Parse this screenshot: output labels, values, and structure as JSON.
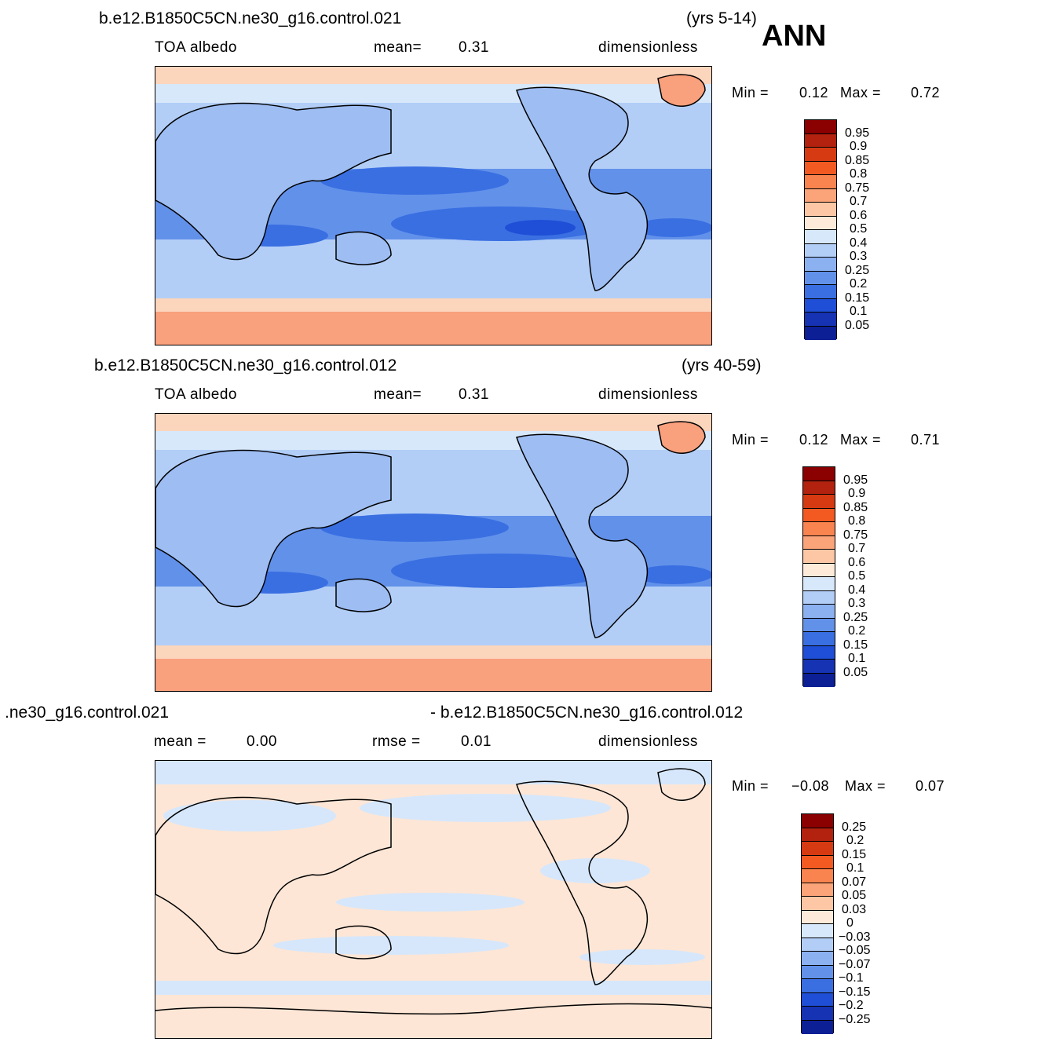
{
  "season": "ANN",
  "panels": [
    {
      "case": "b.e12.B1850C5CN.ne30_g16.control.021",
      "years": "(yrs 5-14)",
      "variable": "TOA  albedo",
      "stat1_label": "mean=",
      "stat1_value": "0.31",
      "stat2_label": "",
      "stat2_value": "",
      "units": "dimensionless",
      "min_label": "Min  =",
      "min_value": "0.12",
      "max_label": "Max  =",
      "max_value": "0.72",
      "ticks": [
        "0.95",
        "0.9",
        "0.85",
        "0.8",
        "0.75",
        "0.7",
        "0.6",
        "0.5",
        "0.4",
        "0.3",
        "0.25",
        "0.2",
        "0.15",
        "0.1",
        "0.05"
      ]
    },
    {
      "case": "b.e12.B1850C5CN.ne30_g16.control.012",
      "years": "(yrs 40-59)",
      "variable": "TOA  albedo",
      "stat1_label": "mean=",
      "stat1_value": "0.31",
      "stat2_label": "",
      "stat2_value": "",
      "units": "dimensionless",
      "min_label": "Min  =",
      "min_value": "0.12",
      "max_label": "Max  =",
      "max_value": "0.71",
      "ticks": [
        "0.95",
        "0.9",
        "0.85",
        "0.8",
        "0.75",
        "0.7",
        "0.6",
        "0.5",
        "0.4",
        "0.3",
        "0.25",
        "0.2",
        "0.15",
        "0.1",
        "0.05"
      ]
    },
    {
      "case_left": ".ne30_g16.control.021",
      "case_right": "- b.e12.B1850C5CN.ne30_g16.control.012",
      "stat1_label": "mean  =",
      "stat1_value": "0.00",
      "stat2_label": "rmse  =",
      "stat2_value": "0.01",
      "units": "dimensionless",
      "min_label": "Min  =",
      "min_value": "−0.08",
      "max_label": "Max  =",
      "max_value": "0.07",
      "ticks": [
        "0.25",
        "0.2",
        "0.15",
        "0.1",
        "0.07",
        "0.05",
        "0.03",
        "0",
        "−0.03",
        "−0.05",
        "−0.07",
        "−0.1",
        "−0.15",
        "−0.2",
        "−0.25"
      ]
    }
  ],
  "colorbar_colors": [
    "#8b0000",
    "#b2220e",
    "#d63a12",
    "#f25a22",
    "#f9844f",
    "#fba479",
    "#fdc7a5",
    "#feead9",
    "#d7e8fb",
    "#b2cef7",
    "#8cb1f0",
    "#6291ea",
    "#3a6fe2",
    "#1f4fd6",
    "#1633b3",
    "#0d1f94"
  ],
  "map_colors": {
    "ocean_low": "#2855e0",
    "ocean_mid": "#4a7ae8",
    "ocean_high": "#8aaef0",
    "land": "#9dbdf3",
    "polar": "#f9a07d",
    "polar_edge": "#fcd5bd",
    "diff_pos": "#fde6d6",
    "diff_neg": "#d6e7fb"
  }
}
